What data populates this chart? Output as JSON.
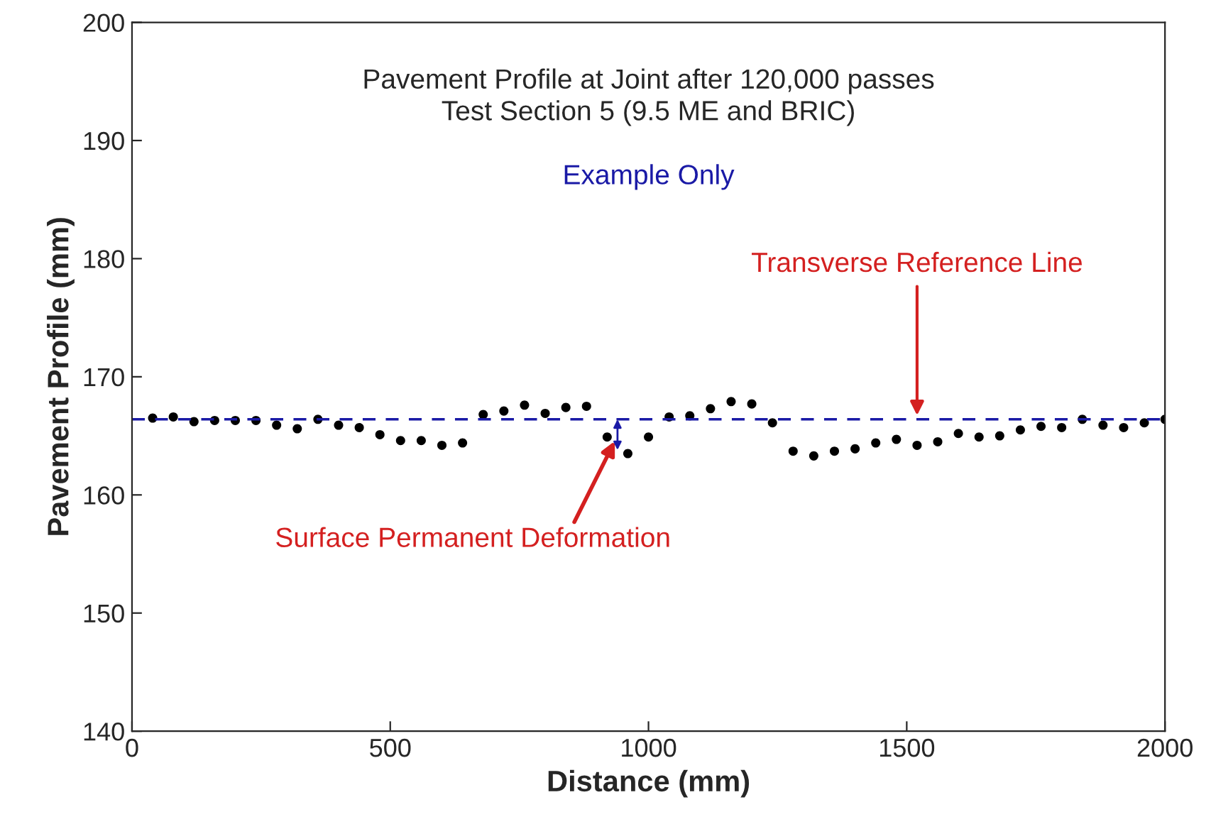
{
  "chart_data": {
    "type": "scatter",
    "title": "Pavement Profile at Joint after 120,000 passes",
    "subtitle": "Test Section 5 (9.5 ME and BRIC)",
    "xlabel": "Distance (mm)",
    "ylabel": "Pavement Profile (mm)",
    "x": [
      40,
      80,
      120,
      160,
      200,
      240,
      280,
      320,
      360,
      400,
      440,
      480,
      520,
      560,
      600,
      640,
      680,
      720,
      760,
      800,
      840,
      880,
      920,
      960,
      1000,
      1040,
      1080,
      1120,
      1160,
      1200,
      1240,
      1280,
      1320,
      1360,
      1400,
      1440,
      1480,
      1520,
      1560,
      1600,
      1640,
      1680,
      1720,
      1760,
      1800,
      1840,
      1880,
      1920,
      1960,
      2000
    ],
    "series": [
      {
        "color": "#000000",
        "values": [
          166.5,
          166.6,
          166.2,
          166.3,
          166.3,
          166.3,
          165.9,
          165.6,
          166.4,
          165.9,
          165.7,
          165.1,
          164.6,
          164.6,
          164.2,
          164.4,
          166.8,
          167.1,
          167.6,
          166.9,
          167.4,
          167.5,
          164.9,
          163.5,
          164.9,
          166.6,
          166.7,
          167.3,
          167.9,
          167.7,
          166.1,
          163.7,
          163.3,
          163.7,
          163.9,
          164.4,
          164.7,
          164.2,
          164.5,
          165.2,
          164.9,
          165.0,
          165.5,
          165.8,
          165.7,
          166.4,
          165.9,
          165.7,
          166.1,
          166.4
        ]
      }
    ],
    "xlim": [
      0,
      2000
    ],
    "xticks": [
      0,
      500,
      1000,
      1500,
      2000
    ],
    "ylim": [
      140,
      200
    ],
    "yticks": [
      140,
      150,
      160,
      170,
      180,
      190,
      200
    ],
    "marker": "circle",
    "grid": false,
    "legend": false,
    "ref_lines": [
      {
        "axis": "y",
        "value": 166.4,
        "label": "Transverse Reference Line",
        "color": "#1a1aa6",
        "line_style": "dashed"
      }
    ],
    "annotations": [
      "Example Only",
      {
        "text": "Surface Permanent Deformation",
        "x": 940,
        "y": 165
      }
    ]
  }
}
